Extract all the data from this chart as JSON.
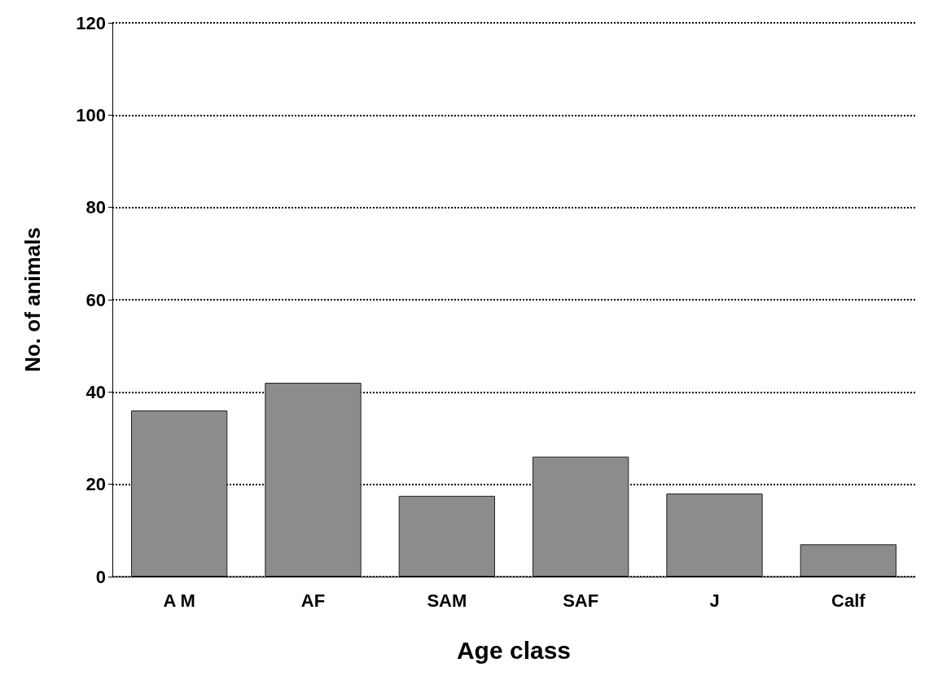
{
  "chart_data": {
    "type": "bar",
    "xlabel": "Age class",
    "ylabel": "No. of animals",
    "categories": [
      "A M",
      "AF",
      "SAM",
      "SAF",
      "J",
      "Calf"
    ],
    "values": [
      36,
      42,
      17.5,
      26,
      18,
      7
    ],
    "color": "#8c8c8c",
    "ylim": [
      0,
      120
    ],
    "yticks": [
      0,
      20,
      40,
      60,
      80,
      100,
      120
    ],
    "grid": "y",
    "line_style": "dotted"
  }
}
